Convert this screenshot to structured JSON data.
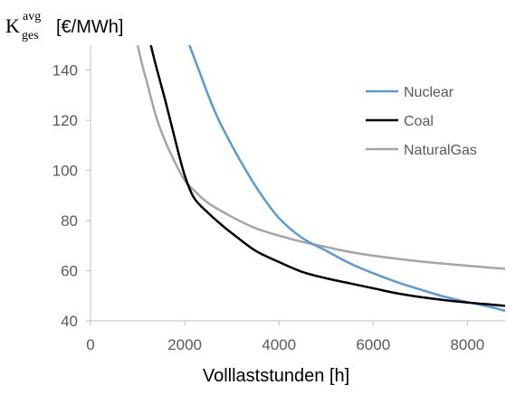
{
  "chart_data": {
    "type": "line",
    "ylabel": {
      "symbol": "K",
      "superscript": "avg",
      "subscript": "ges",
      "unit": "[€/MWh]"
    },
    "xlabel": "Volllaststunden [h]",
    "xlim": [
      0,
      8800
    ],
    "ylim": [
      40,
      150
    ],
    "xticks": [
      0,
      2000,
      4000,
      6000,
      8000
    ],
    "yticks": [
      40,
      60,
      80,
      100,
      120,
      140
    ],
    "grid": false,
    "legend_position": "top-right",
    "series": [
      {
        "name": "Nuclear",
        "color": "#5b9bd5",
        "x": [
          2100,
          2300,
          2500,
          2700,
          3000,
          3300,
          3600,
          4000,
          4500,
          5000,
          5500,
          6000,
          6500,
          7000,
          7500,
          8000,
          8500,
          8800
        ],
        "y": [
          150,
          140,
          130,
          121,
          110,
          100,
          91,
          81,
          73,
          68,
          63,
          59,
          55.5,
          52.5,
          49.7,
          47.5,
          45.5,
          44
        ]
      },
      {
        "name": "Coal",
        "color": "#000000",
        "x": [
          1280,
          1400,
          1600,
          1800,
          2000,
          2200,
          2500,
          2800,
          3000,
          3500,
          4000,
          4500,
          5000,
          5500,
          6000,
          6500,
          7000,
          7500,
          8000,
          8500,
          8800
        ],
        "y": [
          150,
          141,
          127,
          112,
          98,
          89,
          83,
          78,
          75,
          68,
          63.5,
          59.5,
          57,
          55,
          53,
          51,
          49.5,
          48.3,
          47.3,
          46.5,
          46
        ]
      },
      {
        "name": "NaturalGas",
        "color": "#a5a5a5",
        "x": [
          1000,
          1100,
          1200,
          1400,
          1600,
          1800,
          2000,
          2200,
          2500,
          3000,
          3500,
          4000,
          4500,
          5000,
          5500,
          6000,
          6500,
          7000,
          7500,
          8000,
          8500,
          8800
        ],
        "y": [
          150,
          142,
          135,
          121,
          111,
          103,
          96,
          92,
          87,
          81.5,
          77,
          74,
          71.5,
          69.5,
          67.5,
          66,
          64.8,
          63.7,
          62.8,
          62,
          61.2,
          60.8
        ]
      }
    ]
  }
}
